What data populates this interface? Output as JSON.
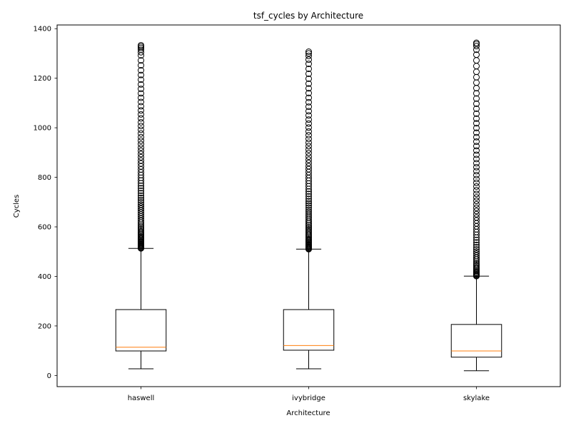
{
  "chart_data": {
    "type": "box",
    "title": "tsf_cycles by Architecture",
    "xlabel": "Architecture",
    "ylabel": "Cycles",
    "ylim": [
      -45,
      1415
    ],
    "yticks": [
      0,
      200,
      400,
      600,
      800,
      1000,
      1200,
      1400
    ],
    "grid": false,
    "categories": [
      "haswell",
      "ivybridge",
      "skylake"
    ],
    "boxes": [
      {
        "category": "haswell",
        "whisker_low": 27,
        "q1": 99,
        "median": 114,
        "q3": 266,
        "whisker_high": 513,
        "outliers": [
          513,
          515,
          518,
          521,
          524,
          527,
          530,
          533,
          537,
          540,
          544,
          548,
          552,
          556,
          560,
          565,
          570,
          575,
          580,
          586,
          592,
          598,
          605,
          612,
          619,
          626,
          634,
          642,
          650,
          658,
          666,
          674,
          682,
          690,
          699,
          708,
          717,
          726,
          736,
          746,
          756,
          766,
          776,
          787,
          798,
          809,
          820,
          832,
          844,
          856,
          868,
          881,
          894,
          907,
          920,
          934,
          948,
          962,
          977,
          992,
          1007,
          1022,
          1038,
          1054,
          1070,
          1087,
          1104,
          1121,
          1139,
          1157,
          1175,
          1194,
          1213,
          1232,
          1252,
          1272,
          1292,
          1305,
          1315,
          1322,
          1328,
          1333
        ]
      },
      {
        "category": "ivybridge",
        "whisker_low": 27,
        "q1": 102,
        "median": 121,
        "q3": 266,
        "whisker_high": 510,
        "outliers": [
          510,
          512,
          515,
          518,
          521,
          524,
          527,
          530,
          534,
          538,
          542,
          546,
          550,
          555,
          560,
          565,
          570,
          576,
          582,
          588,
          594,
          600,
          607,
          614,
          621,
          628,
          636,
          644,
          652,
          660,
          668,
          677,
          686,
          695,
          704,
          713,
          723,
          733,
          743,
          753,
          764,
          775,
          786,
          797,
          809,
          821,
          833,
          845,
          858,
          871,
          884,
          898,
          912,
          926,
          940,
          955,
          970,
          985,
          1001,
          1017,
          1033,
          1050,
          1067,
          1085,
          1103,
          1121,
          1140,
          1159,
          1178,
          1198,
          1218,
          1238,
          1258,
          1275,
          1290,
          1300,
          1307
        ]
      },
      {
        "category": "skylake",
        "whisker_low": 19,
        "q1": 74,
        "median": 99,
        "q3": 206,
        "whisker_high": 401,
        "outliers": [
          401,
          404,
          407,
          410,
          414,
          418,
          422,
          427,
          432,
          437,
          443,
          449,
          455,
          462,
          469,
          476,
          484,
          492,
          500,
          509,
          518,
          527,
          537,
          547,
          557,
          568,
          579,
          590,
          602,
          614,
          626,
          638,
          651,
          664,
          677,
          691,
          705,
          719,
          733,
          748,
          763,
          778,
          793,
          809,
          825,
          841,
          857,
          874,
          891,
          908,
          926,
          944,
          962,
          980,
          999,
          1018,
          1037,
          1057,
          1077,
          1097,
          1118,
          1139,
          1160,
          1182,
          1204,
          1226,
          1249,
          1272,
          1295,
          1315,
          1330,
          1338,
          1343
        ]
      }
    ],
    "colors": {
      "box": "#000000",
      "median": "#ff7f0e",
      "outlier": "#000000",
      "background": "#ffffff"
    }
  }
}
